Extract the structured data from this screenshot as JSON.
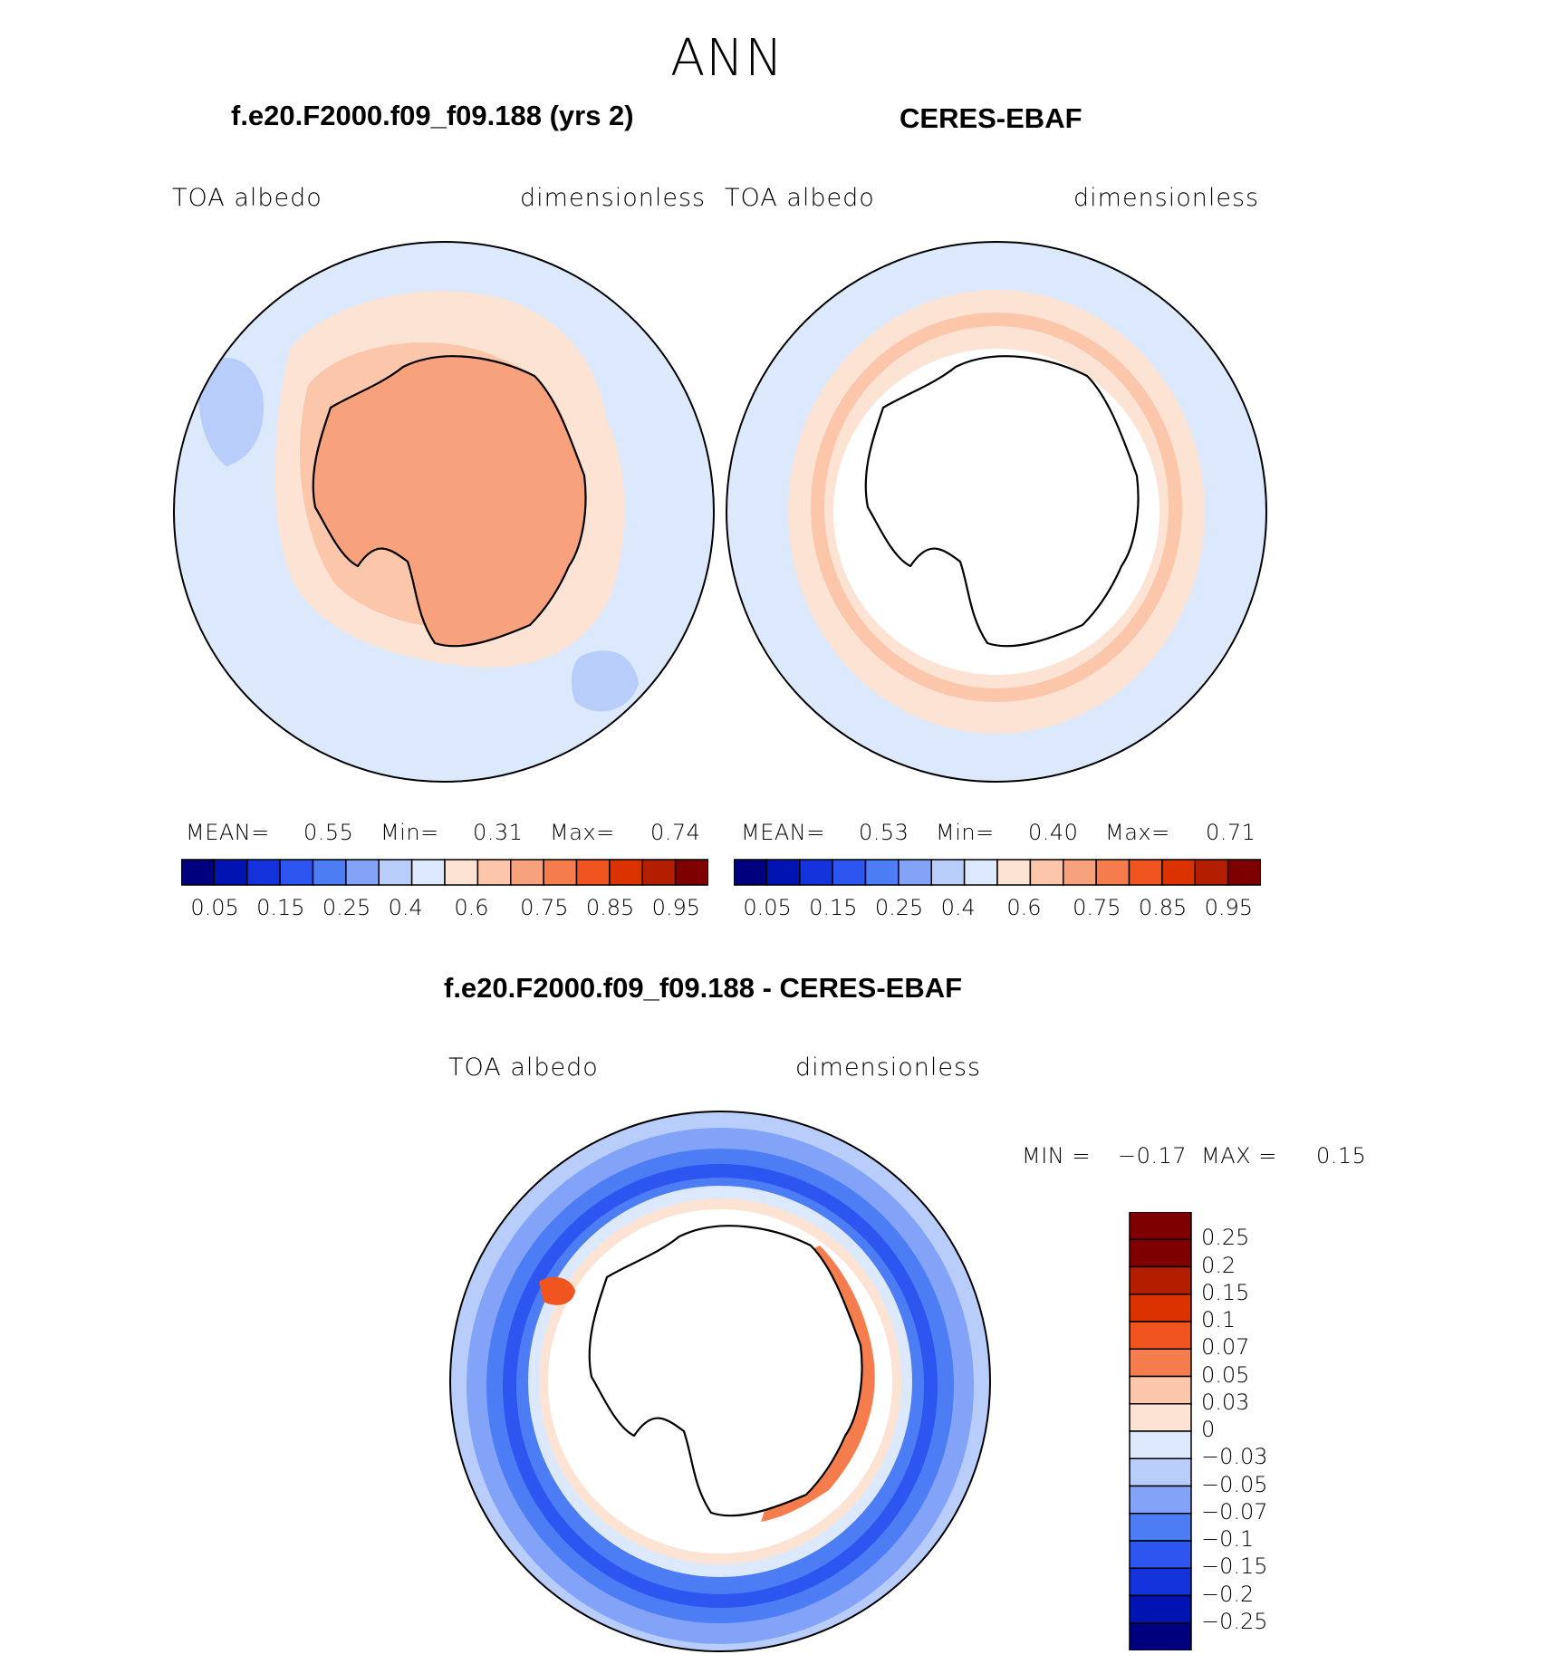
{
  "page": {
    "title": "ANN"
  },
  "chart_data": [
    {
      "type": "heatmap",
      "projection": "south-polar-stereographic",
      "title": "f.e20.F2000.f09_f09.188 (yrs 2)",
      "left_string": "TOA  albedo",
      "right_string": "dimensionless",
      "stats": {
        "mean_label": "MEAN=",
        "mean": "0.55",
        "min_label": "Min=",
        "min": "0.31",
        "max_label": "Max=",
        "max": "0.74"
      },
      "fields": {
        "outer_ocean": 0.35,
        "mid_ring": 0.5,
        "inner_ring": 0.6,
        "continent": 0.65
      },
      "colorbar": {
        "orientation": "horizontal",
        "levels": [
          "0.05",
          "0.1",
          "0.15",
          "0.2",
          "0.25",
          "0.3",
          "0.35",
          "0.4",
          "0.5",
          "0.6",
          "0.7",
          "0.75",
          "0.8",
          "0.85",
          "0.9",
          "0.95"
        ],
        "labels": [
          "0.05",
          "0.15",
          "0.25",
          "0.4",
          "0.6",
          "0.75",
          "0.85",
          "0.95"
        ]
      }
    },
    {
      "type": "heatmap",
      "projection": "south-polar-stereographic",
      "title": "CERES-EBAF",
      "left_string": "TOA  albedo",
      "right_string": "dimensionless",
      "stats": {
        "mean_label": "MEAN=",
        "mean": "0.53",
        "min_label": "Min=",
        "min": "0.40",
        "max_label": "Max=",
        "max": "0.71"
      },
      "fields": {
        "outer_ocean": 0.35,
        "mid_ring": 0.5,
        "inner_ring": 0.6,
        "continent": "missing"
      },
      "colorbar": {
        "orientation": "horizontal",
        "levels": [
          "0.05",
          "0.1",
          "0.15",
          "0.2",
          "0.25",
          "0.3",
          "0.35",
          "0.4",
          "0.5",
          "0.6",
          "0.7",
          "0.75",
          "0.8",
          "0.85",
          "0.9",
          "0.95"
        ],
        "labels": [
          "0.05",
          "0.15",
          "0.25",
          "0.4",
          "0.6",
          "0.75",
          "0.85",
          "0.95"
        ]
      }
    },
    {
      "type": "heatmap",
      "projection": "south-polar-stereographic",
      "title": "f.e20.F2000.f09_f09.188 - CERES-EBAF",
      "left_string": "TOA  albedo",
      "right_string": "dimensionless",
      "stats": {
        "min_label": "MIN =",
        "min": "−0.17",
        "max_label": "MAX =",
        "max": "0.15"
      },
      "fields": {
        "outer": -0.05,
        "mid_ring": -0.1,
        "inner_ring": -0.15,
        "coastal_positive": 0.1,
        "continent": "missing"
      },
      "colorbar": {
        "orientation": "vertical",
        "labels": [
          "0.25",
          "0.2",
          "0.15",
          "0.1",
          "0.07",
          "0.05",
          "0.03",
          "0",
          "−0.03",
          "−0.05",
          "−0.07",
          "−0.1",
          "−0.15",
          "−0.2",
          "−0.25"
        ]
      }
    }
  ],
  "colors": {
    "abs_palette": [
      "#00007f",
      "#0014b4",
      "#1432dc",
      "#2d55f0",
      "#4c7df5",
      "#82a3f7",
      "#b8cdfa",
      "#dce9fc",
      "#fde3d4",
      "#fbc6a9",
      "#f8a17d",
      "#f57c4c",
      "#f0541f",
      "#dc3200",
      "#b41e00",
      "#7f0000"
    ],
    "diff_palette": [
      "#7f0000",
      "#b41e00",
      "#dc3200",
      "#f0541f",
      "#f57c4c",
      "#fbc6a9",
      "#fde3d4",
      "#dce9fc",
      "#b8cdfa",
      "#82a3f7",
      "#4c7df5",
      "#2d55f0",
      "#1432dc",
      "#0014b4",
      "#00007f"
    ]
  }
}
